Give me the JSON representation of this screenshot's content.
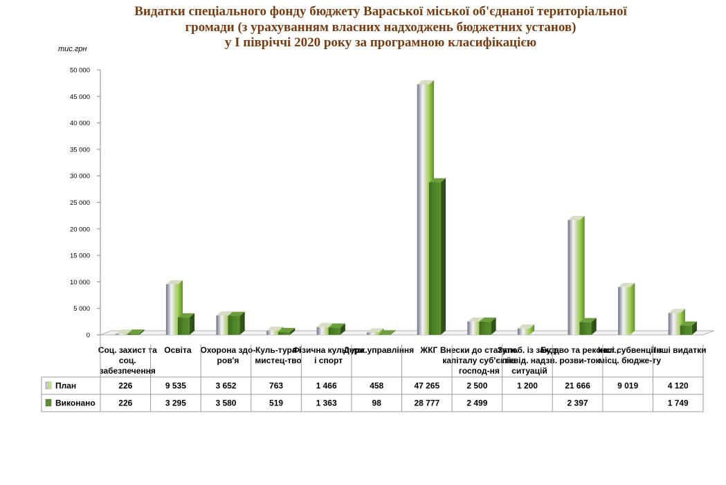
{
  "title_lines": [
    "Видатки спеціального фонду бюджету Вараської міської об'єднаної територіальної",
    "громади (з урахуванням власних надходжень бюджетних установ)",
    "у І півріччі 2020 року за програмною класифікацією"
  ],
  "unit": "тис.грн",
  "chart_data": {
    "type": "bar",
    "title": "Видатки спеціального фонду бюджету Вараської міської об'єднаної територіальної громади (з урахуванням власних надходжень бюджетних установ) у І півріччі 2020 року за програмною класифікацією",
    "ylabel": "тис.грн",
    "ylim": [
      0,
      50000
    ],
    "y_ticks": [
      0,
      5000,
      10000,
      15000,
      20000,
      25000,
      30000,
      35000,
      40000,
      45000,
      50000
    ],
    "y_tick_labels": [
      "0",
      "5 000",
      "10 000",
      "15 000",
      "20 000",
      "25 000",
      "30 000",
      "35 000",
      "40 000",
      "45 000",
      "50 000"
    ],
    "categories": [
      [
        "Соц. захист та",
        "соц.",
        "забезпечення"
      ],
      [
        "Освіта"
      ],
      [
        "Охорона здо-",
        "ров'я"
      ],
      [
        "Куль-тура і",
        "мистец-тво"
      ],
      [
        "Фізична культура",
        "і спорт"
      ],
      [
        "Держ.управління"
      ],
      [
        "ЖКГ"
      ],
      [
        "Внески до статутн.",
        "капіталу суб'єктів",
        "господ-ня"
      ],
      [
        "Запоб. із заход.",
        "ліквід. надзв.",
        "ситуацій"
      ],
      [
        "Буд-во та реконст.,",
        "розви-ток"
      ],
      [
        "Інші субвенції з",
        "місц. бюдже-ту"
      ],
      [
        "Інші видатки"
      ]
    ],
    "series": [
      {
        "name": "План",
        "values": [
          226,
          9535,
          3652,
          763,
          1466,
          458,
          47265,
          2500,
          1200,
          21666,
          9019,
          4120
        ],
        "labels": [
          "226",
          "9 535",
          "3 652",
          "763",
          "1 466",
          "458",
          "47 265",
          "2 500",
          "1 200",
          "21 666",
          "9 019",
          "4 120"
        ]
      },
      {
        "name": "Виконано",
        "values": [
          226,
          3295,
          3580,
          519,
          1363,
          98,
          28777,
          2499,
          null,
          2397,
          null,
          1749
        ],
        "labels": [
          "226",
          "3 295",
          "3 580",
          "519",
          "1 363",
          "98",
          "28 777",
          "2 499",
          "",
          "2 397",
          "",
          "1 749"
        ]
      }
    ],
    "grid": false,
    "legend": "data table",
    "colors": {
      "plan": "#c9ccd6",
      "done": "#5a8f2e",
      "accent": "#b8e07c"
    }
  }
}
